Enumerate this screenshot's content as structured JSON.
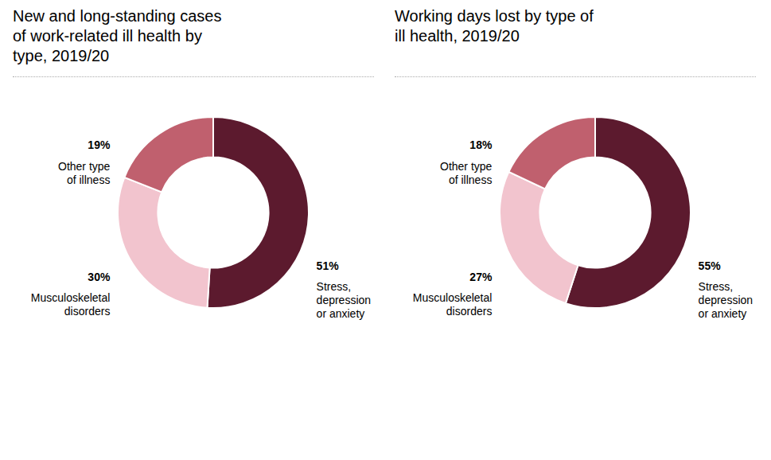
{
  "chart_data": [
    {
      "type": "pie",
      "title": "New and long-standing cases\nof work-related ill health by\ntype, 2019/20",
      "categories": [
        "Stress,\ndepression\nor anxiety",
        "Musculoskeletal\ndisorders",
        "Other type\nof illness"
      ],
      "values": [
        51,
        30,
        19
      ],
      "value_labels": [
        "51%",
        "30%",
        "19%"
      ],
      "colors": [
        "#5C1A2E",
        "#F2C4CE",
        "#C0606E"
      ],
      "data_labels": true
    },
    {
      "type": "pie",
      "title": "Working days lost by type of\nill health, 2019/20",
      "categories": [
        "Stress,\ndepression\nor anxiety",
        "Musculoskeletal\ndisorders",
        "Other type\nof illness"
      ],
      "values": [
        55,
        27,
        18
      ],
      "value_labels": [
        "55%",
        "27%",
        "18%"
      ],
      "colors": [
        "#5C1A2E",
        "#F2C4CE",
        "#C0606E"
      ],
      "data_labels": true
    }
  ]
}
